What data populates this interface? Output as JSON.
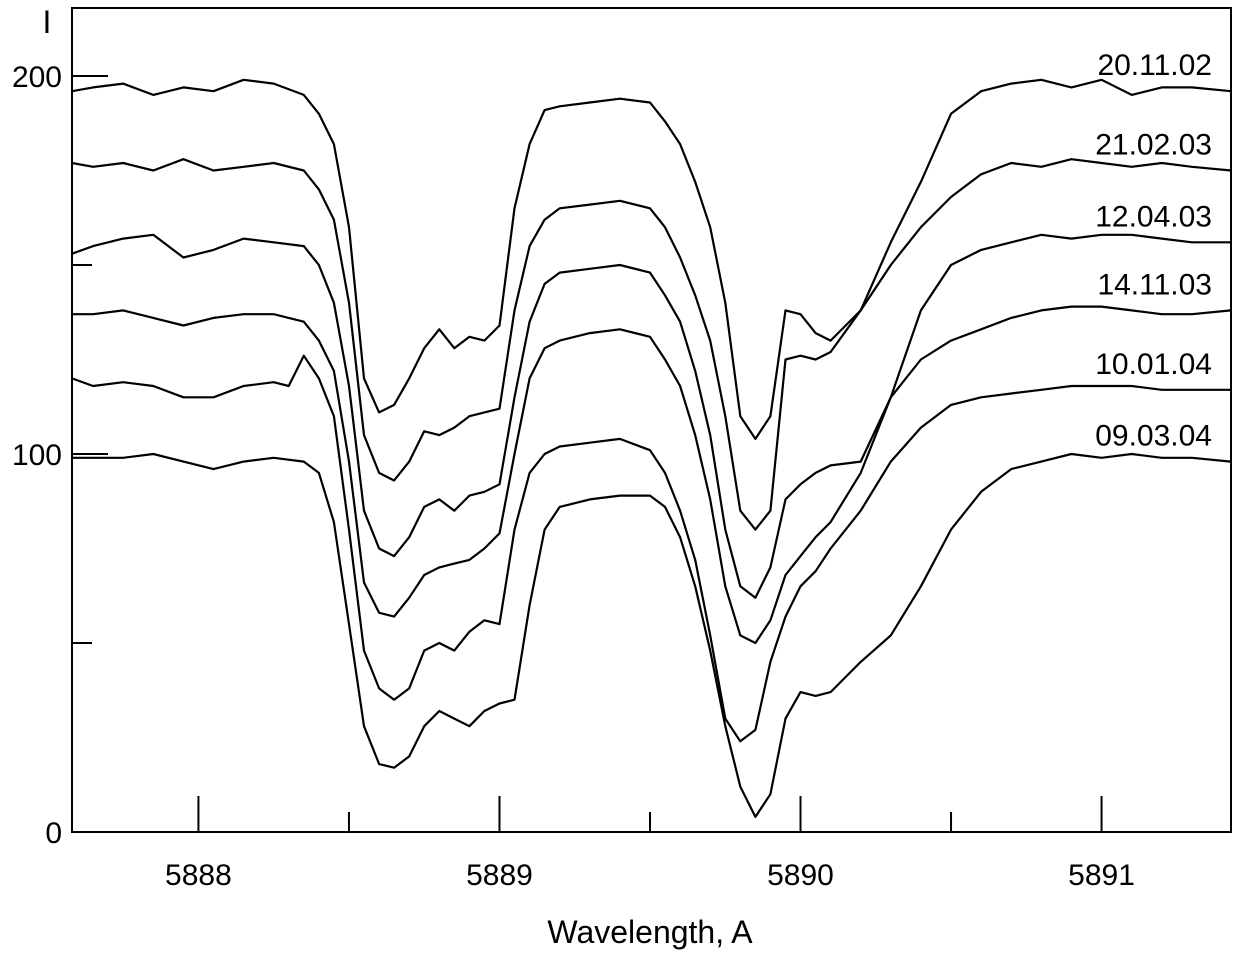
{
  "chart_data": {
    "type": "line",
    "title": "",
    "xlabel": "Wavelength, A",
    "ylabel": "I",
    "xlim": [
      5887.58,
      5891.43
    ],
    "ylim": [
      0,
      218
    ],
    "x_ticks": [
      5888,
      5889,
      5890,
      5891
    ],
    "x_minor_ticks": [
      5888.5,
      5889.5,
      5890.5
    ],
    "y_ticks": [
      0,
      100,
      200
    ],
    "y_minor_ticks": [
      50,
      150
    ],
    "grid": false,
    "series_label_placement": "right end of each curve",
    "line_color": "#000000",
    "series": [
      {
        "name": "20.11.02",
        "x": [
          5887.58,
          5887.65,
          5887.75,
          5887.85,
          5887.95,
          5888.05,
          5888.15,
          5888.25,
          5888.35,
          5888.4,
          5888.45,
          5888.5,
          5888.55,
          5888.6,
          5888.65,
          5888.7,
          5888.75,
          5888.8,
          5888.85,
          5888.9,
          5888.95,
          5889.0,
          5889.05,
          5889.1,
          5889.15,
          5889.2,
          5889.3,
          5889.4,
          5889.5,
          5889.55,
          5889.6,
          5889.65,
          5889.7,
          5889.75,
          5889.8,
          5889.85,
          5889.9,
          5889.95,
          5890.0,
          5890.05,
          5890.1,
          5890.2,
          5890.3,
          5890.4,
          5890.5,
          5890.6,
          5890.7,
          5890.8,
          5890.9,
          5891.0,
          5891.1,
          5891.2,
          5891.3,
          5891.43
        ],
        "y": [
          196,
          197,
          198,
          195,
          197,
          196,
          199,
          198,
          195,
          190,
          182,
          160,
          120,
          111,
          113,
          120,
          128,
          133,
          128,
          131,
          130,
          134,
          165,
          182,
          191,
          192,
          193,
          194,
          193,
          188,
          182,
          172,
          160,
          140,
          110,
          104,
          110,
          138,
          137,
          132,
          130,
          138,
          156,
          172,
          190,
          196,
          198,
          199,
          197,
          199,
          195,
          197,
          197,
          196
        ]
      },
      {
        "name": "21.02.03",
        "x": [
          5887.58,
          5887.65,
          5887.75,
          5887.85,
          5887.95,
          5888.05,
          5888.15,
          5888.25,
          5888.35,
          5888.4,
          5888.45,
          5888.5,
          5888.55,
          5888.6,
          5888.65,
          5888.7,
          5888.75,
          5888.8,
          5888.85,
          5888.9,
          5888.95,
          5889.0,
          5889.05,
          5889.1,
          5889.15,
          5889.2,
          5889.3,
          5889.4,
          5889.5,
          5889.55,
          5889.6,
          5889.65,
          5889.7,
          5889.75,
          5889.8,
          5889.85,
          5889.9,
          5889.95,
          5890.0,
          5890.05,
          5890.1,
          5890.2,
          5890.3,
          5890.4,
          5890.5,
          5890.6,
          5890.7,
          5890.8,
          5890.9,
          5891.0,
          5891.1,
          5891.2,
          5891.3,
          5891.43
        ],
        "y": [
          177,
          176,
          177,
          175,
          178,
          175,
          176,
          177,
          175,
          170,
          162,
          140,
          105,
          95,
          93,
          98,
          106,
          105,
          107,
          110,
          111,
          112,
          138,
          155,
          162,
          165,
          166,
          167,
          165,
          160,
          152,
          142,
          130,
          110,
          85,
          80,
          85,
          125,
          126,
          125,
          127,
          138,
          150,
          160,
          168,
          174,
          177,
          176,
          178,
          177,
          176,
          177,
          176,
          175
        ]
      },
      {
        "name": "12.04.03",
        "x": [
          5887.58,
          5887.65,
          5887.75,
          5887.85,
          5887.95,
          5888.05,
          5888.15,
          5888.25,
          5888.35,
          5888.4,
          5888.45,
          5888.5,
          5888.55,
          5888.6,
          5888.65,
          5888.7,
          5888.75,
          5888.8,
          5888.85,
          5888.9,
          5888.95,
          5889.0,
          5889.05,
          5889.1,
          5889.15,
          5889.2,
          5889.3,
          5889.4,
          5889.5,
          5889.55,
          5889.6,
          5889.65,
          5889.7,
          5889.75,
          5889.8,
          5889.85,
          5889.9,
          5889.95,
          5890.0,
          5890.05,
          5890.1,
          5890.2,
          5890.3,
          5890.4,
          5890.5,
          5890.6,
          5890.7,
          5890.8,
          5890.9,
          5891.0,
          5891.1,
          5891.2,
          5891.3,
          5891.43
        ],
        "y": [
          153,
          155,
          157,
          158,
          152,
          154,
          157,
          156,
          155,
          150,
          140,
          118,
          85,
          75,
          73,
          78,
          86,
          88,
          85,
          89,
          90,
          92,
          115,
          135,
          145,
          148,
          149,
          150,
          148,
          142,
          135,
          122,
          105,
          80,
          65,
          62,
          70,
          88,
          92,
          95,
          97,
          98,
          115,
          138,
          150,
          154,
          156,
          158,
          157,
          158,
          158,
          157,
          156,
          156
        ]
      },
      {
        "name": "14.11.03",
        "x": [
          5887.58,
          5887.65,
          5887.75,
          5887.85,
          5887.95,
          5888.05,
          5888.15,
          5888.25,
          5888.35,
          5888.4,
          5888.45,
          5888.5,
          5888.55,
          5888.6,
          5888.65,
          5888.7,
          5888.75,
          5888.8,
          5888.85,
          5888.9,
          5888.95,
          5889.0,
          5889.05,
          5889.1,
          5889.15,
          5889.2,
          5889.3,
          5889.4,
          5889.5,
          5889.55,
          5889.6,
          5889.65,
          5889.7,
          5889.75,
          5889.8,
          5889.85,
          5889.9,
          5889.95,
          5890.0,
          5890.05,
          5890.1,
          5890.2,
          5890.3,
          5890.4,
          5890.5,
          5890.6,
          5890.7,
          5890.8,
          5890.9,
          5891.0,
          5891.1,
          5891.2,
          5891.3,
          5891.43
        ],
        "y": [
          137,
          137,
          138,
          136,
          134,
          136,
          137,
          137,
          135,
          130,
          122,
          98,
          66,
          58,
          57,
          62,
          68,
          70,
          71,
          72,
          75,
          79,
          100,
          120,
          128,
          130,
          132,
          133,
          131,
          125,
          118,
          105,
          88,
          65,
          52,
          50,
          56,
          68,
          73,
          78,
          82,
          95,
          115,
          125,
          130,
          133,
          136,
          138,
          139,
          139,
          138,
          137,
          137,
          138
        ]
      },
      {
        "name": "10.01.04",
        "x": [
          5887.58,
          5887.65,
          5887.75,
          5887.85,
          5887.95,
          5888.05,
          5888.15,
          5888.25,
          5888.3,
          5888.35,
          5888.4,
          5888.45,
          5888.5,
          5888.55,
          5888.6,
          5888.65,
          5888.7,
          5888.75,
          5888.8,
          5888.85,
          5888.9,
          5888.95,
          5889.0,
          5889.05,
          5889.1,
          5889.15,
          5889.2,
          5889.3,
          5889.4,
          5889.5,
          5889.55,
          5889.6,
          5889.65,
          5889.7,
          5889.75,
          5889.8,
          5889.85,
          5889.9,
          5889.95,
          5890.0,
          5890.05,
          5890.1,
          5890.2,
          5890.3,
          5890.4,
          5890.5,
          5890.6,
          5890.7,
          5890.8,
          5890.9,
          5891.0,
          5891.1,
          5891.2,
          5891.3,
          5891.43
        ],
        "y": [
          120,
          118,
          119,
          118,
          115,
          115,
          118,
          119,
          118,
          126,
          120,
          110,
          80,
          48,
          38,
          35,
          38,
          48,
          50,
          48,
          53,
          56,
          55,
          80,
          95,
          100,
          102,
          103,
          104,
          101,
          95,
          85,
          72,
          52,
          30,
          24,
          27,
          45,
          57,
          65,
          69,
          75,
          85,
          98,
          107,
          113,
          115,
          116,
          117,
          118,
          118,
          118,
          117,
          117,
          117
        ]
      },
      {
        "name": "09.03.04",
        "x": [
          5887.58,
          5887.65,
          5887.75,
          5887.85,
          5887.95,
          5888.05,
          5888.15,
          5888.25,
          5888.35,
          5888.4,
          5888.45,
          5888.5,
          5888.55,
          5888.6,
          5888.65,
          5888.7,
          5888.75,
          5888.8,
          5888.85,
          5888.9,
          5888.95,
          5889.0,
          5889.05,
          5889.1,
          5889.15,
          5889.2,
          5889.3,
          5889.4,
          5889.5,
          5889.55,
          5889.6,
          5889.65,
          5889.7,
          5889.75,
          5889.8,
          5889.85,
          5889.9,
          5889.95,
          5890.0,
          5890.05,
          5890.1,
          5890.2,
          5890.3,
          5890.4,
          5890.5,
          5890.6,
          5890.7,
          5890.8,
          5890.9,
          5891.0,
          5891.1,
          5891.2,
          5891.3,
          5891.43
        ],
        "y": [
          99,
          99,
          99,
          100,
          98,
          96,
          98,
          99,
          98,
          95,
          82,
          55,
          28,
          18,
          17,
          20,
          28,
          32,
          30,
          28,
          32,
          34,
          35,
          60,
          80,
          86,
          88,
          89,
          89,
          86,
          78,
          65,
          48,
          28,
          12,
          4,
          10,
          30,
          37,
          36,
          37,
          45,
          52,
          65,
          80,
          90,
          96,
          98,
          100,
          99,
          100,
          99,
          99,
          98
        ]
      }
    ]
  }
}
